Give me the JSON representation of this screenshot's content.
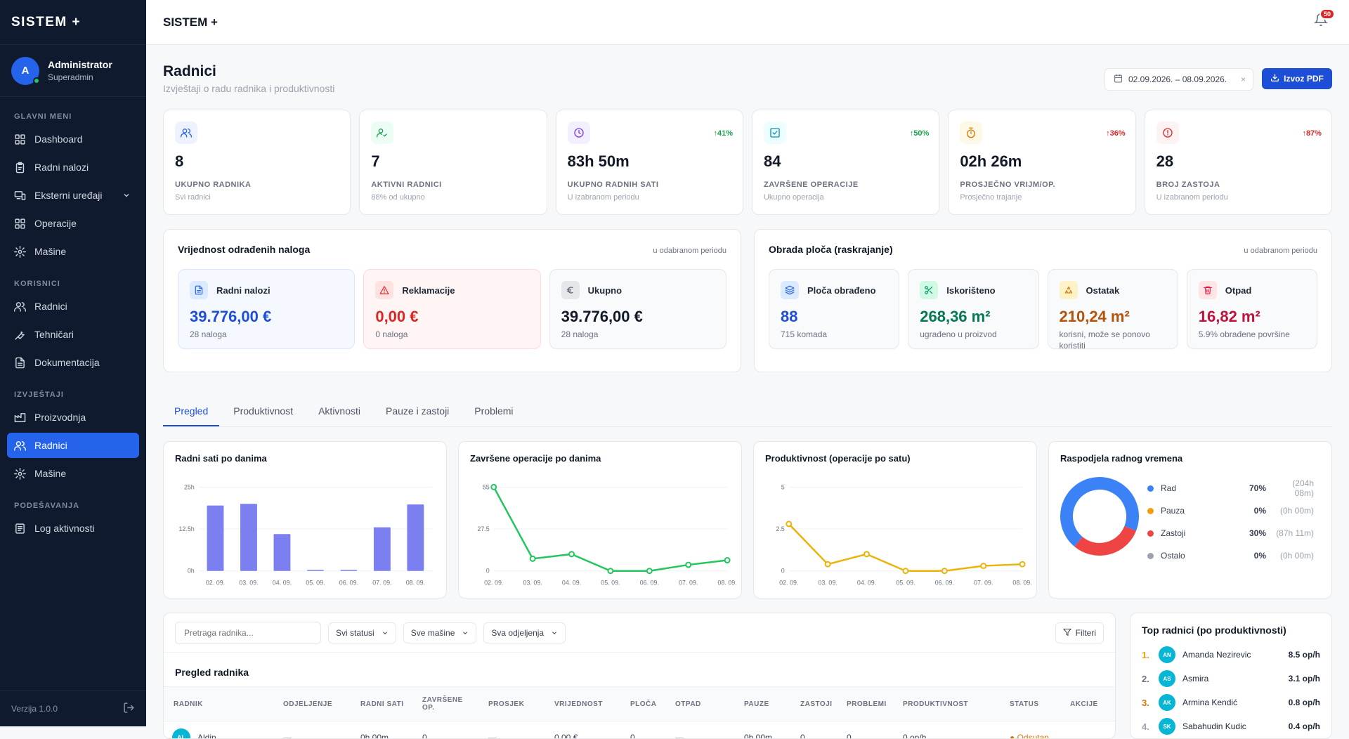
{
  "app": {
    "logo": "SISTEM +",
    "top_title": "SISTEM +",
    "notif_count": "50",
    "version": "Verzija 1.0.0"
  },
  "user": {
    "initial": "A",
    "name": "Administrator",
    "role": "Superadmin"
  },
  "nav": {
    "sections": [
      {
        "title": "GLAVNI MENI",
        "items": [
          {
            "label": "Dashboard",
            "icon": "grid-icon"
          },
          {
            "label": "Radni nalozi",
            "icon": "clipboard-icon"
          },
          {
            "label": "Eksterni uređaji",
            "icon": "devices-icon",
            "expandable": true
          },
          {
            "label": "Operacije",
            "icon": "grid-icon"
          },
          {
            "label": "Mašine",
            "icon": "gear-icon"
          }
        ]
      },
      {
        "title": "KORISNICI",
        "items": [
          {
            "label": "Radnici",
            "icon": "users-icon"
          },
          {
            "label": "Tehničari",
            "icon": "wrench-icon"
          },
          {
            "label": "Dokumentacija",
            "icon": "document-icon"
          }
        ]
      },
      {
        "title": "IZVJEŠTAJI",
        "items": [
          {
            "label": "Proizvodnja",
            "icon": "factory-icon"
          },
          {
            "label": "Radnici",
            "icon": "users-icon",
            "active": true
          },
          {
            "label": "Mašine",
            "icon": "gear-icon"
          }
        ]
      },
      {
        "title": "PODEŠAVANJA",
        "items": [
          {
            "label": "Log aktivnosti",
            "icon": "log-icon"
          }
        ]
      }
    ]
  },
  "header": {
    "title": "Radnici",
    "subtitle": "Izvještaji o radu radnika i produktivnosti",
    "date_range": "02.09.2026. – 08.09.2026.",
    "clear": "×",
    "pdf_label": "Izvoz PDF"
  },
  "stats": [
    {
      "value": "8",
      "label": "UKUPNO RADNIKA",
      "sub": "Svi radnici",
      "trend": "",
      "icon": "users-icon",
      "color": "#2563eb",
      "bg": "#eef2ff"
    },
    {
      "value": "7",
      "label": "AKTIVNI RADNICI",
      "sub": "88% od ukupno",
      "trend": "",
      "icon": "user-check-icon",
      "color": "#16a34a",
      "bg": "#ecfdf5"
    },
    {
      "value": "83h 50m",
      "label": "UKUPNO RADNIH SATI",
      "sub": "U izabranom periodu",
      "trend": "↑41%",
      "trend_color": "#16a34a",
      "icon": "clock-icon",
      "color": "#7c3aed",
      "bg": "#f3effe"
    },
    {
      "value": "84",
      "label": "ZAVRŠENE OPERACIJE",
      "sub": "Ukupno operacija",
      "trend": "↑50%",
      "trend_color": "#16a34a",
      "icon": "check-square-icon",
      "color": "#0891b2",
      "bg": "#ecfeff"
    },
    {
      "value": "02h 26m",
      "label": "PROSJEČNO VRIJM/OP.",
      "sub": "Prosječno trajanje",
      "trend": "↑36%",
      "trend_color": "#dc2626",
      "icon": "timer-icon",
      "color": "#d97706",
      "bg": "#fef9e7"
    },
    {
      "value": "28",
      "label": "BROJ ZASTOJA",
      "sub": "U izabranom periodu",
      "trend": "↑87%",
      "trend_color": "#dc2626",
      "icon": "alert-circle-icon",
      "color": "#dc2626",
      "bg": "#fef2f2"
    }
  ],
  "value_panel": {
    "title": "Vrijednost odrađenih naloga",
    "note": "u odabranom periodu",
    "cards": [
      {
        "label": "Radni nalozi",
        "value": "39.776,00 €",
        "sub": "28 naloga",
        "color": "#1d4ed8",
        "bg": "#f5f8ff",
        "border": "#dbe5fb",
        "icon": "document-icon",
        "icbg": "#dbeafe",
        "iccolor": "#2563eb"
      },
      {
        "label": "Reklamacije",
        "value": "0,00 €",
        "sub": "0 naloga",
        "color": "#dc2626",
        "bg": "#fff5f5",
        "border": "#fbdada",
        "icon": "warning-icon",
        "icbg": "#fee2e2",
        "iccolor": "#dc2626"
      },
      {
        "label": "Ukupno",
        "value": "39.776,00 €",
        "sub": "28 naloga",
        "color": "#111827",
        "bg": "#f9fafb",
        "border": "#e5e7eb",
        "icon": "euro-icon",
        "icbg": "#e5e7eb",
        "iccolor": "#4b5563"
      }
    ]
  },
  "plate_panel": {
    "title": "Obrada ploča (raskrajanje)",
    "note": "u odabranom periodu",
    "cards": [
      {
        "label": "Ploča obrađeno",
        "value": "88",
        "sub": "715 komada",
        "color": "#1d4ed8",
        "icon": "layers-icon",
        "icbg": "#dbeafe",
        "iccolor": "#2563eb"
      },
      {
        "label": "Iskorišteno",
        "value": "268,36 m²",
        "sub": "ugrađeno u proizvod",
        "color": "#047857",
        "icon": "scissors-icon",
        "icbg": "#d1fae5",
        "iccolor": "#059669"
      },
      {
        "label": "Ostatak",
        "value": "210,24 m²",
        "sub": "korisni, može se ponovo koristiti",
        "color": "#b45309",
        "icon": "recycle-icon",
        "icbg": "#fef3c7",
        "iccolor": "#d97706"
      },
      {
        "label": "Otpad",
        "value": "16,82 m²",
        "sub": "5.9% obrađene površine",
        "color": "#be123c",
        "icon": "trash-icon",
        "icbg": "#ffe4e6",
        "iccolor": "#e11d48"
      }
    ]
  },
  "tabs": [
    "Pregled",
    "Produktivnost",
    "Aktivnosti",
    "Pauze i zastoji",
    "Problemi"
  ],
  "chart_data": [
    {
      "type": "bar",
      "title": "Radni sati po danima",
      "categories": [
        "02. 09.",
        "03. 09.",
        "04. 09.",
        "05. 09.",
        "06. 09.",
        "07. 09.",
        "08. 09."
      ],
      "values": [
        19.5,
        20,
        11,
        0.3,
        0.3,
        13,
        19.8
      ],
      "ylim": [
        0,
        25
      ],
      "yticks": [
        "0h",
        "12.5h",
        "25h"
      ],
      "ytick_values": [
        0,
        12.5,
        25
      ],
      "color": "#7b7ff0"
    },
    {
      "type": "line",
      "title": "Završene operacije po danima",
      "categories": [
        "02. 09.",
        "03. 09.",
        "04. 09.",
        "05. 09.",
        "06. 09.",
        "07. 09.",
        "08. 09."
      ],
      "values": [
        55,
        8,
        11,
        0,
        0,
        4,
        7
      ],
      "ylim": [
        0,
        55
      ],
      "yticks": [
        "0",
        "27.5",
        "55"
      ],
      "ytick_values": [
        0,
        27.5,
        55
      ],
      "color": "#22c55e"
    },
    {
      "type": "line",
      "title": "Produktivnost (operacije po satu)",
      "categories": [
        "02. 09.",
        "03. 09.",
        "04. 09.",
        "05. 09.",
        "06. 09.",
        "07. 09.",
        "08. 09."
      ],
      "values": [
        2.8,
        0.4,
        1.0,
        0,
        0,
        0.3,
        0.4
      ],
      "ylim": [
        0,
        5
      ],
      "yticks": [
        "0",
        "2.5",
        "5"
      ],
      "ytick_values": [
        0,
        2.5,
        5
      ],
      "color": "#eab308"
    },
    {
      "type": "pie",
      "title": "Raspodjela radnog vremena",
      "slices": [
        {
          "name": "Rad",
          "value": 70,
          "pct": "70%",
          "time": "(204h 08m)",
          "color": "#3b82f6"
        },
        {
          "name": "Pauza",
          "value": 0,
          "pct": "0%",
          "time": "(0h 00m)",
          "color": "#f59e0b"
        },
        {
          "name": "Zastoji",
          "value": 30,
          "pct": "30%",
          "time": "(87h 11m)",
          "color": "#ef4444"
        },
        {
          "name": "Ostalo",
          "value": 0,
          "pct": "0%",
          "time": "(0h 00m)",
          "color": "#9ca3af"
        }
      ]
    }
  ],
  "table": {
    "search_placeholder": "Pretraga radnika...",
    "filters": [
      "Svi statusi",
      "Sve mašine",
      "Sva odjeljenja"
    ],
    "filter_btn": "Filteri",
    "title": "Pregled radnika",
    "columns": [
      "RADNIK",
      "ODJELJENJE",
      "RADNI SATI",
      "ZAVRŠENE OP.",
      "PROSJEK",
      "VRIJEDNOST",
      "PLOČA",
      "OTPAD",
      "PAUZE",
      "ZASTOJI",
      "PROBLEMI",
      "PRODUKTIVNOST",
      "STATUS",
      "AKCIJE"
    ],
    "rows": [
      {
        "initials": "AL",
        "name": "Aldin",
        "dept": "—",
        "hours": "0h 00m",
        "ops": "0",
        "avg": "—",
        "value": "0,00 €",
        "plates": "0",
        "waste": "—",
        "pauses": "0h 00m",
        "stops": "0",
        "problems": "0",
        "prod": "0 op/h",
        "status": "● Odsutan"
      }
    ]
  },
  "top": {
    "title": "Top radnici (po produktivnosti)",
    "items": [
      {
        "rank": "1.",
        "initials": "AN",
        "name": "Amanda Nezirevic",
        "value": "8.5 op/h",
        "color": "#f59e0b"
      },
      {
        "rank": "2.",
        "initials": "AS",
        "name": "Asmira",
        "value": "3.1 op/h",
        "color": "#6b7280"
      },
      {
        "rank": "3.",
        "initials": "AK",
        "name": "Armina Kendić",
        "value": "0.8 op/h",
        "color": "#d97706"
      },
      {
        "rank": "4.",
        "initials": "SK",
        "name": "Sabahudin Kudic",
        "value": "0.4 op/h",
        "color": "#9ca3af"
      }
    ]
  }
}
